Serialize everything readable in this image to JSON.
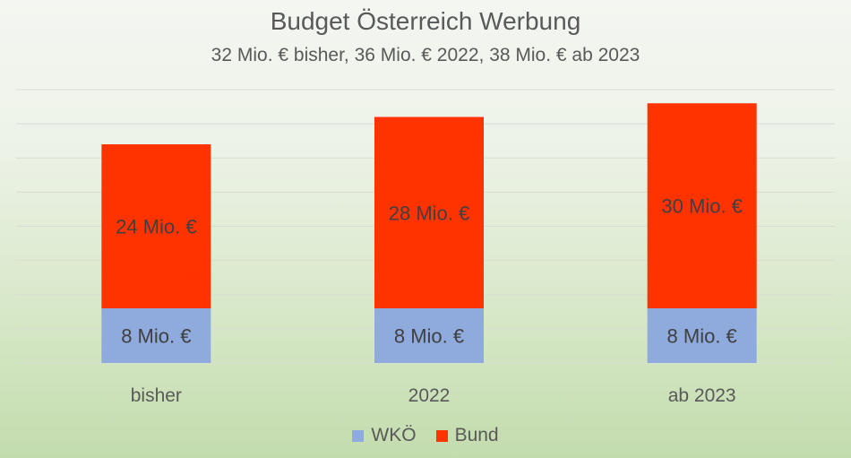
{
  "chart_data": {
    "type": "bar",
    "stacked": true,
    "title": "Budget Österreich Werbung",
    "subtitle": "32 Mio. € bisher, 36 Mio. € 2022, 38 Mio. € ab 2023",
    "categories": [
      "bisher",
      "2022",
      "ab 2023"
    ],
    "series": [
      {
        "name": "WKÖ",
        "color": "#8faadc",
        "values": [
          8,
          8,
          8
        ],
        "labels": [
          "8 Mio. €",
          "8 Mio. €",
          "8 Mio. €"
        ]
      },
      {
        "name": "Bund",
        "color": "#ff3300",
        "values": [
          24,
          28,
          30
        ],
        "labels": [
          "24 Mio. €",
          "28 Mio. €",
          "30 Mio. €"
        ]
      }
    ],
    "ylim": [
      0,
      40
    ],
    "grid": true,
    "legend_position": "bottom",
    "xlabel": "",
    "ylabel": ""
  }
}
